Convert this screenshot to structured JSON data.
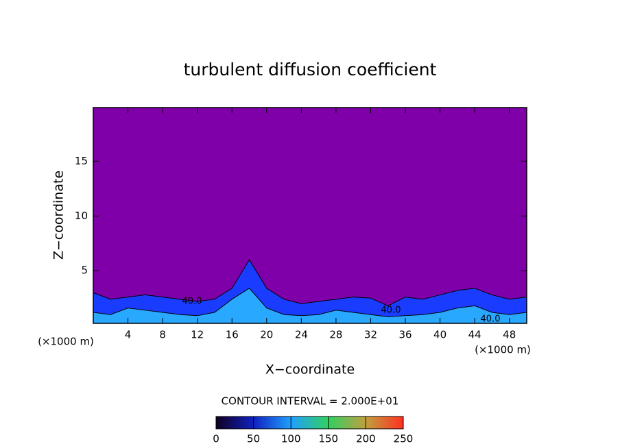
{
  "chart_data": {
    "type": "contour",
    "title": "turbulent diffusion coefficient",
    "xlabel": "X−coordinate",
    "ylabel": "Z−coordinate",
    "xunit": "(×1000 m)",
    "yunit": "(×1000 m)",
    "background": "#7f00a8",
    "xlim": [
      0,
      50
    ],
    "ylim": [
      0.2,
      19.9
    ],
    "xticks": [
      4,
      8,
      12,
      16,
      20,
      24,
      28,
      32,
      36,
      40,
      44,
      48
    ],
    "yticks": [
      5,
      10,
      15
    ],
    "x": [
      0,
      2,
      4,
      6,
      8,
      10,
      12,
      14,
      16,
      18,
      20,
      22,
      24,
      26,
      28,
      30,
      32,
      34,
      36,
      38,
      40,
      42,
      44,
      46,
      48,
      50
    ],
    "series": [
      {
        "color": "#1a3cff",
        "values": [
          3.0,
          2.4,
          2.6,
          2.8,
          2.6,
          2.4,
          2.2,
          2.4,
          3.4,
          6.0,
          3.4,
          2.4,
          2.0,
          2.2,
          2.4,
          2.6,
          2.5,
          1.8,
          2.6,
          2.4,
          2.8,
          3.2,
          3.4,
          2.8,
          2.4,
          2.6
        ]
      },
      {
        "color": "#28a8ff",
        "values": [
          1.2,
          1.0,
          1.6,
          1.4,
          1.2,
          1.0,
          0.9,
          1.2,
          2.4,
          3.4,
          1.6,
          1.0,
          0.9,
          1.0,
          1.4,
          1.2,
          1.0,
          0.8,
          0.9,
          1.0,
          1.2,
          1.6,
          1.8,
          1.2,
          1.0,
          1.2
        ]
      }
    ],
    "annotations": [
      "40.0",
      "40.0",
      "40.0"
    ],
    "contour_interval": "CONTOUR INTERVAL = 2.000E+01",
    "colorbar_lim": [
      0,
      250
    ],
    "colorbar_ticks": [
      0,
      50,
      100,
      150,
      200,
      250
    ]
  }
}
